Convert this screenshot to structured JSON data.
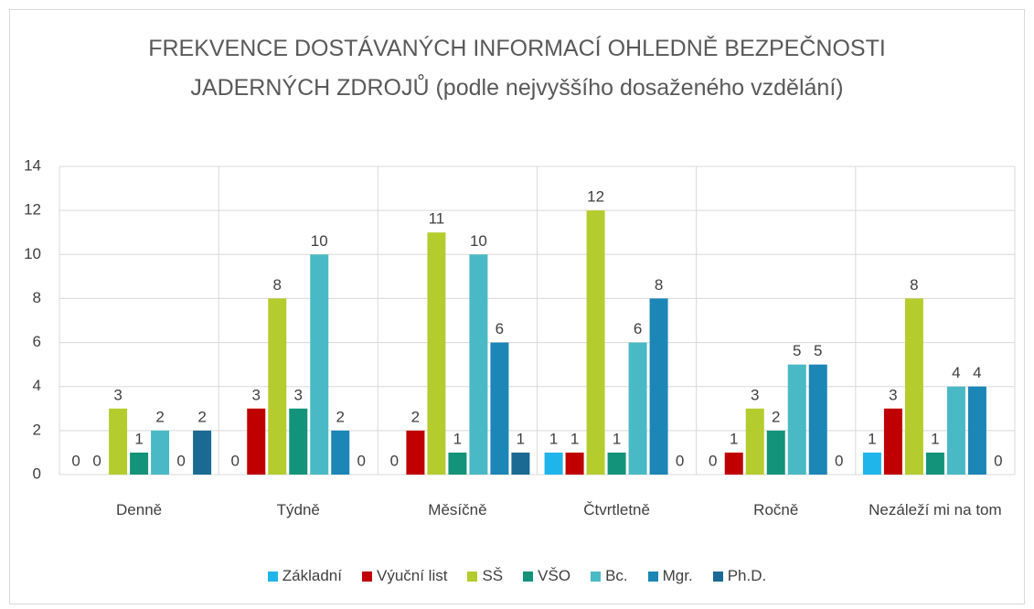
{
  "chart_data": {
    "type": "bar",
    "title": "FREKVENCE DOSTÁVANÝCH INFORMACÍ OHLEDNĚ BEZPEČNOSTI JADERNÝCH ZDROJŮ (podle nejvyššího dosaženého vzdělání)",
    "categories": [
      "Denně",
      "Týdně",
      "Měsíčně",
      "Čtvrtletně",
      "Ročně",
      "Nezáleží mi na tom"
    ],
    "series": [
      {
        "name": "Základní",
        "color": "#1fb5ea",
        "values": [
          0,
          0,
          0,
          1,
          0,
          1
        ]
      },
      {
        "name": "Výuční list",
        "color": "#c00000",
        "values": [
          0,
          3,
          2,
          1,
          1,
          3
        ]
      },
      {
        "name": "SŠ",
        "color": "#b5cc2e",
        "values": [
          3,
          8,
          11,
          12,
          3,
          8
        ]
      },
      {
        "name": "VŠO",
        "color": "#13937a",
        "values": [
          1,
          3,
          1,
          1,
          2,
          1
        ]
      },
      {
        "name": "Bc.",
        "color": "#4ab9c6",
        "values": [
          2,
          10,
          10,
          6,
          5,
          4
        ]
      },
      {
        "name": "Mgr.",
        "color": "#1c86b7",
        "values": [
          0,
          2,
          6,
          8,
          5,
          4
        ]
      },
      {
        "name": "Ph.D.",
        "color": "#1a6a93",
        "values": [
          2,
          0,
          1,
          0,
          0,
          0
        ]
      }
    ],
    "ylim": [
      0,
      14
    ],
    "yticks": [
      0,
      2,
      4,
      6,
      8,
      10,
      12,
      14
    ],
    "grid": true,
    "legend": "bottom"
  }
}
